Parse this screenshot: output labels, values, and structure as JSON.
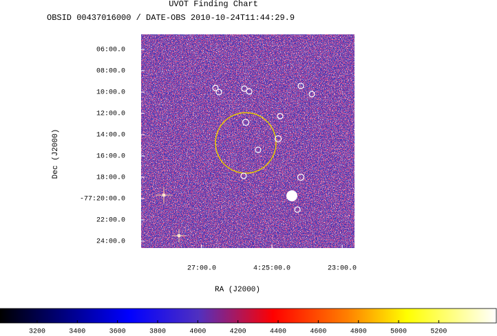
{
  "chart_data": {
    "type": "image",
    "title": "UVOT Finding Chart",
    "subtitle": "OBSID 00437016000 / DATE-OBS 2010-10-24T11:44:29.9",
    "xlabel": "RA (J2000)",
    "ylabel": "Dec (J2000)",
    "xlim": [
      67.181,
      65.662
    ],
    "xticks": [
      {
        "value": 66.75,
        "label": "27:00.0"
      },
      {
        "value": 66.25,
        "label": "4:25:00.0"
      },
      {
        "value": 65.75,
        "label": "23:00.0"
      }
    ],
    "ylim": [
      -77.4108,
      -77.0764
    ],
    "yticks": [
      {
        "value": -77.1,
        "label": "06:00.0"
      },
      {
        "value": -77.13333,
        "label": "08:00.0"
      },
      {
        "value": -77.16667,
        "label": "10:00.0"
      },
      {
        "value": -77.2,
        "label": "12:00.0"
      },
      {
        "value": -77.23333,
        "label": "14:00.0"
      },
      {
        "value": -77.26667,
        "label": "16:00.0"
      },
      {
        "value": -77.3,
        "label": "18:00.0"
      },
      {
        "value": -77.33333,
        "label": "-77:20:00.0"
      },
      {
        "value": -77.36667,
        "label": "22:00.0"
      },
      {
        "value": -77.4,
        "label": "24:00.0"
      }
    ],
    "colorbar": {
      "lim": [
        3015,
        5490
      ],
      "ticks": [
        3200,
        3400,
        3600,
        3800,
        4000,
        4200,
        4400,
        4600,
        4800,
        5000,
        5200
      ]
    }
  }
}
